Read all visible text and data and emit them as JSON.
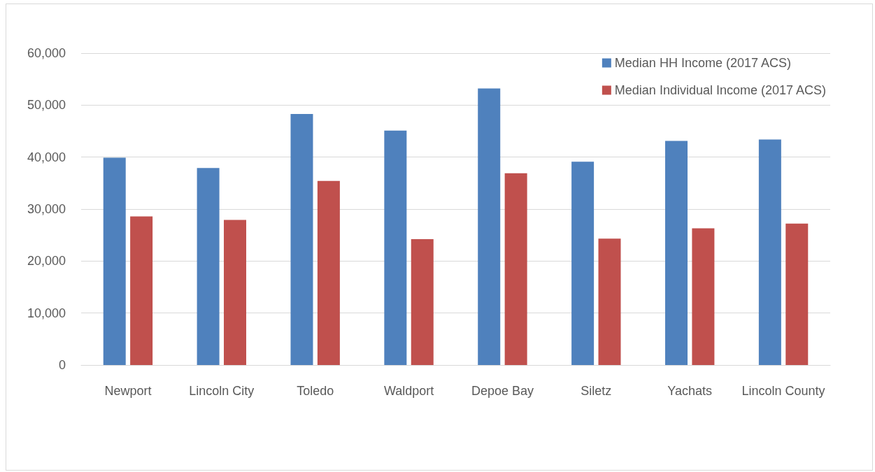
{
  "chart_data": {
    "type": "bar",
    "categories": [
      "Newport",
      "Lincoln City",
      "Toledo",
      "Waldport",
      "Depoe Bay",
      "Siletz",
      "Yachats",
      "Lincoln County"
    ],
    "series": [
      {
        "name": "Median HH Income (2017 ACS)",
        "color": "#4f81bd",
        "values": [
          39900,
          37900,
          48300,
          45100,
          53200,
          39100,
          43100,
          43400
        ]
      },
      {
        "name": "Median Individual Income (2017 ACS)",
        "color": "#c0504d",
        "values": [
          28600,
          27900,
          35400,
          24200,
          36900,
          24300,
          26300,
          27200
        ]
      }
    ],
    "ylim": [
      0,
      60000
    ],
    "yticks": [
      {
        "value": 0,
        "label": "0"
      },
      {
        "value": 10000,
        "label": "10,000"
      },
      {
        "value": 20000,
        "label": "20,000"
      },
      {
        "value": 30000,
        "label": "30,000"
      },
      {
        "value": 40000,
        "label": "40,000"
      },
      {
        "value": 50000,
        "label": "50,000"
      },
      {
        "value": 60000,
        "label": "60,000"
      }
    ],
    "grid": "y",
    "legend": "top right"
  }
}
